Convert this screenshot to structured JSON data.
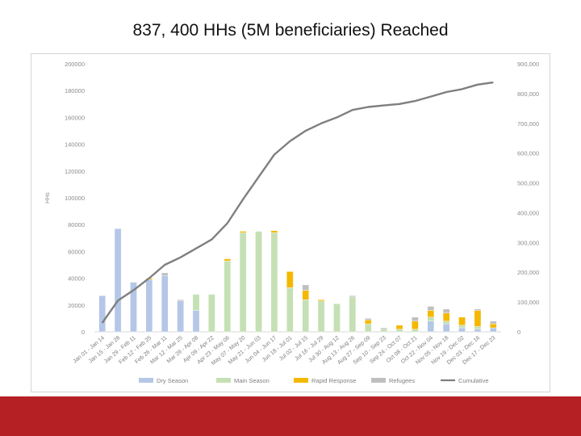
{
  "slide": {
    "title": "837, 400 HHs (5M beneficiaries) Reached"
  },
  "chart_data": {
    "type": "bar",
    "stacked": true,
    "secondary_line": "Cumulative",
    "title": "837, 400 HHs (5M beneficiaries) Reached",
    "xlabel": "",
    "ylabel": "HHs",
    "ylim": [
      0,
      200000
    ],
    "y2lim": [
      0,
      900000
    ],
    "y_ticks": [
      "0",
      "20000",
      "40000",
      "60000",
      "80000",
      "100000",
      "120000",
      "140000",
      "160000",
      "180000",
      "200000"
    ],
    "y2_ticks": [
      "0",
      "100,000",
      "200,000",
      "300,000",
      "400,000",
      "500,000",
      "600,000",
      "700,000",
      "800,000",
      "900,000"
    ],
    "categories": [
      "Jan 01 - Jan 14",
      "Jan 15 - Jan 28",
      "Jan 29 - Feb 11",
      "Feb 12 - Feb 25",
      "Feb 26 - Mar 11",
      "Mar 12 - Mar 25",
      "Mar 26 - Apr 08",
      "Apr 09 - Apr 22",
      "Apr 23 - May 06",
      "May 07 - May 20",
      "May 21 - Jun 03",
      "Jun 04 - Jun 17",
      "Jun 18 - Jul 01",
      "Jul 02 - Jul 15",
      "Jul 16 - Jul 29",
      "Jul 30 - Aug 12",
      "Aug 13 - Aug 26",
      "Aug 27 - Sep 09",
      "Sep 10 - Sep 23",
      "Sep 24 - Oct 07",
      "Oct 08 - Oct 21",
      "Oct 22 - Nov 04",
      "Nov 05 - Nov 18",
      "Nov 19 - Dec 02",
      "Dec 03 - Dec 16",
      "Dec 17 - Dec 23"
    ],
    "series": [
      {
        "name": "Dry Season",
        "color": "#b4c7e7",
        "values": [
          27000,
          77000,
          37000,
          39000,
          42000,
          23000,
          16000,
          0,
          0,
          0,
          0,
          0,
          0,
          0,
          0,
          0,
          0,
          0,
          0,
          0,
          0,
          8000,
          6000,
          3000,
          2000,
          3000
        ]
      },
      {
        "name": "Main Season",
        "color": "#c5e0b4",
        "values": [
          0,
          0,
          0,
          0,
          0,
          0,
          12000,
          28000,
          53000,
          74000,
          75000,
          74000,
          33000,
          24000,
          23000,
          21000,
          26000,
          6000,
          2000,
          2000,
          2000,
          3000,
          2000,
          2000,
          2000,
          0
        ]
      },
      {
        "name": "Rapid Response",
        "color": "#f5b800",
        "values": [
          0,
          0,
          0,
          1000,
          0,
          0,
          0,
          0,
          1500,
          1000,
          0,
          1500,
          12000,
          7000,
          1000,
          0,
          0,
          3000,
          0,
          3000,
          6000,
          5000,
          6000,
          6000,
          12000,
          3000
        ]
      },
      {
        "name": "Refugees",
        "color": "#bfbfbf",
        "values": [
          0,
          0,
          0,
          0,
          2000,
          1000,
          0,
          0,
          0,
          0,
          0,
          0,
          0,
          4000,
          0,
          0,
          1000,
          1000,
          1000,
          0,
          3000,
          3000,
          3000,
          0,
          1000,
          2000
        ]
      }
    ],
    "cumulative": {
      "name": "Cumulative",
      "color": "#7f7f7f",
      "values": [
        30000,
        105000,
        140000,
        180000,
        225000,
        250000,
        280000,
        310000,
        365000,
        445000,
        520000,
        595000,
        640000,
        675000,
        700000,
        720000,
        745000,
        755000,
        760000,
        765000,
        775000,
        790000,
        805000,
        815000,
        830000,
        837400
      ]
    },
    "legend": [
      "Dry Season",
      "Main Season",
      "Rapid Response",
      "Refugees",
      "Cumulative"
    ],
    "legend_position": "bottom",
    "grid": false
  }
}
